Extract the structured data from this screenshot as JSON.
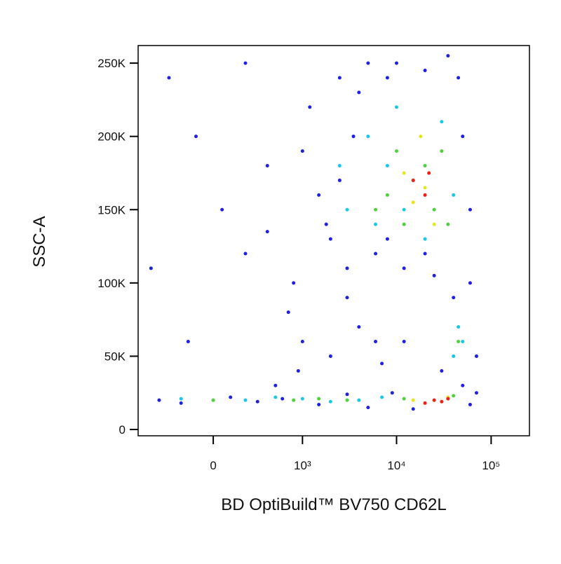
{
  "chart_data": {
    "type": "scatter",
    "x_label": "BD OptiBuild™ BV750 CD62L",
    "y_label": "SSC-A",
    "xscale": "biexponential",
    "xlim": [
      -700,
      254000
    ],
    "ylim": [
      -4300,
      262000
    ],
    "xticks": [
      0,
      {
        "value": 1000,
        "label": "10³"
      },
      {
        "value": 10000,
        "label": "10⁴"
      },
      {
        "value": 100000,
        "label": "10⁵"
      }
    ],
    "yticks": [
      0,
      {
        "value": 50000,
        "label": "50K"
      },
      {
        "value": 100000,
        "label": "100K"
      },
      {
        "value": 150000,
        "label": "150K"
      },
      {
        "value": 200000,
        "label": "200K"
      },
      {
        "value": 250000,
        "label": "250K"
      }
    ],
    "series": [
      {
        "color": "#1f1fe6",
        "x": [
          -400,
          -200,
          100,
          300,
          600,
          -300,
          -100,
          50,
          200,
          400,
          800,
          1200,
          1500,
          2000,
          2500,
          3000,
          4000,
          5000,
          6000,
          8000,
          12000,
          20000,
          40000,
          60000,
          70000,
          50000,
          30000,
          2000,
          1000,
          700,
          -500,
          500,
          1500,
          3000,
          5000,
          9000,
          15000,
          60000,
          70000,
          45000,
          35000,
          3500,
          2500,
          1800,
          6000,
          8000,
          25000,
          50000,
          60000,
          4000,
          10000,
          20000,
          -150,
          200,
          900,
          12000,
          7000,
          400,
          1000,
          3000
        ],
        "y": [
          20000,
          18000,
          22000,
          19000,
          21000,
          240000,
          200000,
          150000,
          120000,
          180000,
          100000,
          220000,
          160000,
          130000,
          240000,
          90000,
          70000,
          250000,
          60000,
          240000,
          110000,
          120000,
          90000,
          100000,
          50000,
          30000,
          40000,
          50000,
          60000,
          80000,
          110000,
          30000,
          17000,
          24000,
          15000,
          25000,
          14000,
          17000,
          25000,
          240000,
          255000,
          200000,
          170000,
          140000,
          120000,
          130000,
          105000,
          200000,
          150000,
          230000,
          250000,
          245000,
          60000,
          250000,
          40000,
          60000,
          45000,
          135000,
          190000,
          110000
        ]
      },
      {
        "color": "#19c8e6",
        "x": [
          -200,
          200,
          500,
          1000,
          2000,
          4000,
          7000,
          3000,
          5000,
          6000,
          8000,
          10000,
          20000,
          30000,
          40000,
          50000,
          40000,
          45000,
          12000,
          2500
        ],
        "y": [
          21000,
          20000,
          22000,
          21000,
          19000,
          20000,
          22000,
          150000,
          200000,
          140000,
          180000,
          220000,
          130000,
          210000,
          160000,
          60000,
          50000,
          70000,
          150000,
          180000
        ]
      },
      {
        "color": "#4cd23c",
        "x": [
          0,
          800,
          1500,
          3000,
          6000,
          8000,
          10000,
          12000,
          15000,
          20000,
          25000,
          30000,
          35000,
          12000,
          40000,
          45000
        ],
        "y": [
          20000,
          20000,
          21000,
          20000,
          150000,
          160000,
          190000,
          140000,
          170000,
          180000,
          150000,
          190000,
          140000,
          21000,
          23000,
          60000
        ]
      },
      {
        "color": "#e6e61e",
        "x": [
          12000,
          15000,
          20000,
          25000,
          18000,
          15000,
          35000
        ],
        "y": [
          175000,
          155000,
          165000,
          140000,
          200000,
          20000,
          22000
        ]
      },
      {
        "color": "#f01e14",
        "x": [
          15000,
          20000,
          22000,
          25000,
          30000,
          20000,
          35000
        ],
        "y": [
          170000,
          160000,
          175000,
          20000,
          19000,
          18000,
          21000
        ]
      }
    ]
  }
}
